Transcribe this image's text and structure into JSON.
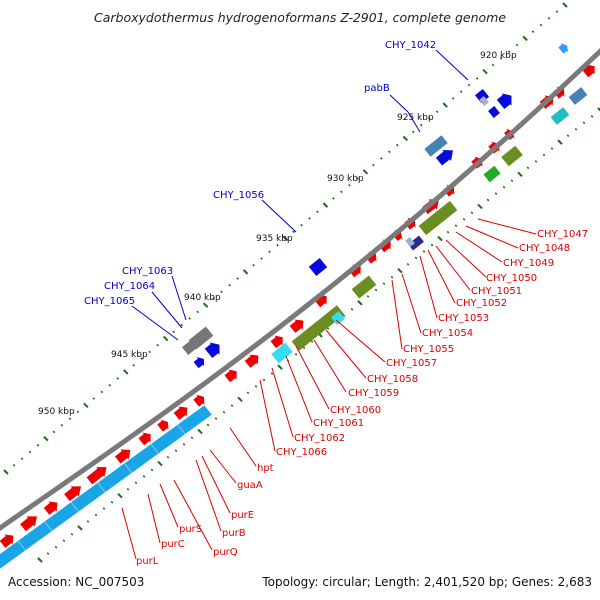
{
  "title": "Carboxydothermus hydrogenoformans Z-2901, complete genome",
  "accession": "Accession: NC_007503",
  "summary": "Topology: circular; Length: 2,401,520 bp; Genes: 2,683",
  "colors": {
    "backbone": "#7a7a7a",
    "forward_cds": "#ee0000",
    "rna_band": "#1aa6e6",
    "rna_band_light": "#33ddee",
    "olive": "#6b8e23",
    "green": "#22aa22",
    "dark_blue": "#0a0ad8",
    "steel_blue": "#4682b4",
    "gray_gene": "#777777",
    "tick": "#1a6e1a",
    "label_blue": "#0000cc",
    "label_red": "#dd0000"
  },
  "kbp_marks": [
    "920 kbp",
    "925 kbp",
    "930 kbp",
    "935 kbp",
    "940 kbp",
    "945 kbp",
    "950 kbp"
  ],
  "labels_blue": [
    "CHY_1042",
    "pabB",
    "CHY_1056",
    "CHY_1063",
    "CHY_1064",
    "CHY_1065"
  ],
  "labels_red": [
    "CHY_1047",
    "CHY_1048",
    "CHY_1049",
    "CHY_1050",
    "CHY_1051",
    "CHY_1052",
    "CHY_1053",
    "CHY_1054",
    "CHY_1055",
    "CHY_1057",
    "CHY_1058",
    "CHY_1059",
    "CHY_1060",
    "CHY_1061",
    "CHY_1062",
    "CHY_1066",
    "hpt",
    "guaA",
    "purE",
    "purB",
    "purS",
    "purQ",
    "purC",
    "purL"
  ]
}
